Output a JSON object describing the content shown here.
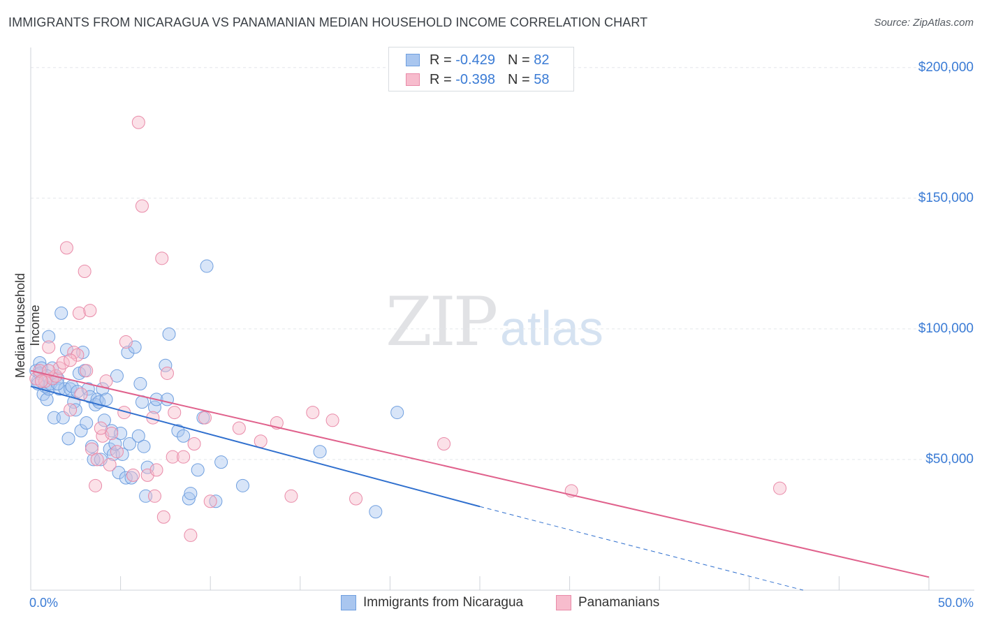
{
  "title": "IMMIGRANTS FROM NICARAGUA VS PANAMANIAN MEDIAN HOUSEHOLD INCOME CORRELATION CHART",
  "source": "Source: ZipAtlas.com",
  "watermark": {
    "zip": "ZIP",
    "atlas": "atlas"
  },
  "legend": {
    "r_label": "R =",
    "n_label": "N =",
    "rows": [
      {
        "r": "-0.429",
        "n": "82",
        "color": "#a9c6ef",
        "border": "#6f9fdf"
      },
      {
        "r": "-0.398",
        "n": "58",
        "color": "#f7bccd",
        "border": "#e98aa8"
      }
    ]
  },
  "bottom_legend": [
    {
      "label": "Immigrants from Nicaragua",
      "color": "#a9c6ef",
      "border": "#6f9fdf"
    },
    {
      "label": "Panamanians",
      "color": "#f7bccd",
      "border": "#e98aa8"
    }
  ],
  "chart_data": {
    "type": "scatter",
    "ylabel": "Median Household Income",
    "xlim": [
      0,
      50
    ],
    "ylim": [
      0,
      205000
    ],
    "x_tick_labels": [
      "0.0%",
      "50.0%"
    ],
    "y_ticks": [
      {
        "value": 50000,
        "label": "$50,000"
      },
      {
        "value": 100000,
        "label": "$100,000"
      },
      {
        "value": 150000,
        "label": "$150,000"
      },
      {
        "value": 200000,
        "label": "$200,000"
      }
    ],
    "grid": true,
    "series": [
      {
        "name": "Immigrants from Nicaragua",
        "color": "#6f9fdf",
        "fill": "#a9c6ef",
        "trend": {
          "x0": 0,
          "y0": 78000,
          "x1": 25,
          "y1": 32000,
          "dash_to_x": 43,
          "dash_to_y": 0,
          "color": "#2f6fce"
        },
        "points": [
          [
            0.3,
            84000
          ],
          [
            0.4,
            80000
          ],
          [
            0.5,
            87000
          ],
          [
            0.5,
            83000
          ],
          [
            0.6,
            85000
          ],
          [
            0.7,
            75000
          ],
          [
            0.8,
            78000
          ],
          [
            0.9,
            73000
          ],
          [
            1.0,
            77000
          ],
          [
            1.0,
            97000
          ],
          [
            1.1,
            79000
          ],
          [
            1.2,
            85000
          ],
          [
            1.3,
            66000
          ],
          [
            1.4,
            82000
          ],
          [
            1.5,
            81000
          ],
          [
            1.6,
            77000
          ],
          [
            1.7,
            106000
          ],
          [
            1.8,
            66000
          ],
          [
            1.9,
            77000
          ],
          [
            2.0,
            92000
          ],
          [
            2.1,
            58000
          ],
          [
            2.2,
            77000
          ],
          [
            2.3,
            78000
          ],
          [
            2.4,
            72000
          ],
          [
            2.5,
            69000
          ],
          [
            2.6,
            76000
          ],
          [
            2.7,
            83000
          ],
          [
            2.8,
            61000
          ],
          [
            2.9,
            91000
          ],
          [
            3.0,
            84000
          ],
          [
            3.1,
            64000
          ],
          [
            3.2,
            77000
          ],
          [
            3.3,
            74000
          ],
          [
            3.4,
            55000
          ],
          [
            3.5,
            50000
          ],
          [
            3.6,
            71000
          ],
          [
            3.7,
            73000
          ],
          [
            3.8,
            72000
          ],
          [
            4.0,
            77000
          ],
          [
            4.1,
            65000
          ],
          [
            4.2,
            73000
          ],
          [
            4.4,
            54000
          ],
          [
            4.5,
            61000
          ],
          [
            4.6,
            52000
          ],
          [
            4.7,
            56000
          ],
          [
            4.8,
            82000
          ],
          [
            4.9,
            45000
          ],
          [
            5.0,
            60000
          ],
          [
            5.1,
            52000
          ],
          [
            5.3,
            43000
          ],
          [
            5.4,
            91000
          ],
          [
            5.5,
            56000
          ],
          [
            5.6,
            43000
          ],
          [
            5.8,
            93000
          ],
          [
            6.0,
            59000
          ],
          [
            6.1,
            79000
          ],
          [
            6.2,
            72000
          ],
          [
            6.3,
            55000
          ],
          [
            6.4,
            36000
          ],
          [
            6.5,
            47000
          ],
          [
            6.9,
            70000
          ],
          [
            7.0,
            73000
          ],
          [
            7.5,
            86000
          ],
          [
            7.6,
            73000
          ],
          [
            7.7,
            98000
          ],
          [
            8.2,
            61000
          ],
          [
            8.5,
            59000
          ],
          [
            8.8,
            35000
          ],
          [
            8.9,
            37000
          ],
          [
            9.3,
            46000
          ],
          [
            9.6,
            66000
          ],
          [
            9.8,
            124000
          ],
          [
            10.3,
            34000
          ],
          [
            10.6,
            49000
          ],
          [
            11.8,
            40000
          ],
          [
            16.1,
            53000
          ],
          [
            19.2,
            30000
          ],
          [
            20.4,
            68000
          ],
          [
            3.9,
            50000
          ],
          [
            1.5,
            79000
          ],
          [
            0.9,
            82000
          ],
          [
            0.4,
            79000
          ]
        ]
      },
      {
        "name": "Panamanians",
        "color": "#e98aa8",
        "fill": "#f7bccd",
        "trend": {
          "x0": 0,
          "y0": 84000,
          "x1": 50,
          "y1": 5000,
          "color": "#e0618c"
        },
        "points": [
          [
            0.3,
            81000
          ],
          [
            0.5,
            84000
          ],
          [
            0.8,
            80000
          ],
          [
            1.0,
            93000
          ],
          [
            1.2,
            81000
          ],
          [
            1.4,
            82000
          ],
          [
            1.6,
            85000
          ],
          [
            1.8,
            87000
          ],
          [
            2.0,
            131000
          ],
          [
            2.2,
            69000
          ],
          [
            2.4,
            91000
          ],
          [
            2.6,
            90000
          ],
          [
            2.7,
            106000
          ],
          [
            2.8,
            75000
          ],
          [
            3.0,
            122000
          ],
          [
            3.1,
            84000
          ],
          [
            3.3,
            107000
          ],
          [
            3.4,
            54000
          ],
          [
            3.6,
            40000
          ],
          [
            3.7,
            50000
          ],
          [
            4.0,
            59000
          ],
          [
            4.2,
            80000
          ],
          [
            4.4,
            48000
          ],
          [
            4.5,
            60000
          ],
          [
            4.8,
            53000
          ],
          [
            5.2,
            68000
          ],
          [
            5.3,
            95000
          ],
          [
            5.7,
            44000
          ],
          [
            6.0,
            179000
          ],
          [
            6.2,
            147000
          ],
          [
            6.5,
            44000
          ],
          [
            6.8,
            66000
          ],
          [
            7.0,
            46000
          ],
          [
            7.3,
            127000
          ],
          [
            7.4,
            28000
          ],
          [
            7.6,
            83000
          ],
          [
            7.9,
            51000
          ],
          [
            8.0,
            68000
          ],
          [
            8.5,
            51000
          ],
          [
            8.9,
            21000
          ],
          [
            9.1,
            56000
          ],
          [
            9.7,
            66000
          ],
          [
            10.0,
            34000
          ],
          [
            11.6,
            62000
          ],
          [
            12.8,
            57000
          ],
          [
            13.7,
            64000
          ],
          [
            14.5,
            36000
          ],
          [
            15.7,
            68000
          ],
          [
            16.8,
            65000
          ],
          [
            18.1,
            35000
          ],
          [
            23.0,
            56000
          ],
          [
            30.1,
            38000
          ],
          [
            41.7,
            39000
          ],
          [
            0.6,
            80000
          ],
          [
            1.0,
            84000
          ],
          [
            2.2,
            88000
          ],
          [
            6.9,
            36000
          ],
          [
            3.9,
            62000
          ]
        ]
      }
    ]
  }
}
